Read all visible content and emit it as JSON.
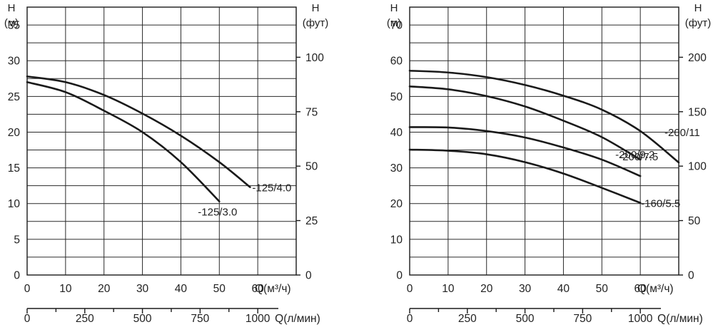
{
  "chart_data": [
    {
      "type": "line",
      "left_axis": {
        "symbol": "H",
        "unit": "(м)",
        "ticks": [
          "0",
          "5",
          "10",
          "15",
          "20",
          "25",
          "30",
          "35"
        ],
        "ylim": [
          0,
          37.5
        ]
      },
      "right_axis": {
        "symbol": "H",
        "unit": "(фут)",
        "ticks": [
          "0",
          "25",
          "50",
          "75",
          "100"
        ]
      },
      "x_axis": {
        "title": "Q(м³/ч)",
        "ticks": [
          "0",
          "10",
          "20",
          "30",
          "40",
          "50",
          "60"
        ],
        "xlim": [
          0,
          70
        ]
      },
      "x2_axis": {
        "title": "Q(л/мин)",
        "ticks": [
          "0",
          "250",
          "500",
          "750",
          "1000"
        ]
      },
      "grid": true,
      "series": [
        {
          "name": "-125/4.0",
          "x": [
            0,
            10,
            20,
            30,
            40,
            50,
            58
          ],
          "y": [
            27.8,
            27,
            25.2,
            22.6,
            19.5,
            15.8,
            12.3
          ]
        },
        {
          "name": "-125/3.0",
          "x": [
            0,
            10,
            20,
            30,
            40,
            50
          ],
          "y": [
            27,
            25.6,
            23,
            20,
            15.8,
            10.3
          ]
        }
      ]
    },
    {
      "type": "line",
      "left_axis": {
        "symbol": "H",
        "unit": "(м)",
        "ticks": [
          "0",
          "10",
          "20",
          "30",
          "40",
          "50",
          "60",
          "70"
        ],
        "ylim": [
          0,
          75
        ]
      },
      "right_axis": {
        "symbol": "H",
        "unit": "(фут)",
        "ticks": [
          "0",
          "50",
          "100",
          "150",
          "200"
        ]
      },
      "x_axis": {
        "title": "Q(м³/ч)",
        "ticks": [
          "0",
          "10",
          "20",
          "30",
          "40",
          "50",
          "60"
        ],
        "xlim": [
          0,
          70
        ]
      },
      "x2_axis": {
        "title": "Q(л/мин)",
        "ticks": [
          "0",
          "250",
          "500",
          "750",
          "1000"
        ]
      },
      "grid": true,
      "series": [
        {
          "name": "-200/11",
          "x": [
            0,
            10,
            20,
            30,
            40,
            50,
            60,
            70
          ],
          "y": [
            57.2,
            56.7,
            55.4,
            53.2,
            50.2,
            46.3,
            40.3,
            31.5
          ]
        },
        {
          "name": "-200/9.2",
          "x": [
            0,
            10,
            20,
            30,
            40,
            50,
            60
          ],
          "y": [
            52.8,
            52,
            50.1,
            47.2,
            43.2,
            38.6,
            32.3
          ]
        },
        {
          "name": "-200/7.5",
          "x": [
            0,
            10,
            20,
            30,
            40,
            50,
            60
          ],
          "y": [
            41.4,
            41.3,
            40.3,
            38.5,
            35.7,
            32.3,
            27.7
          ]
        },
        {
          "name": "-160/5.5",
          "x": [
            0,
            10,
            20,
            30,
            40,
            50,
            60
          ],
          "y": [
            35.1,
            34.8,
            33.8,
            31.6,
            28.4,
            24.4,
            20.2
          ]
        }
      ]
    }
  ]
}
